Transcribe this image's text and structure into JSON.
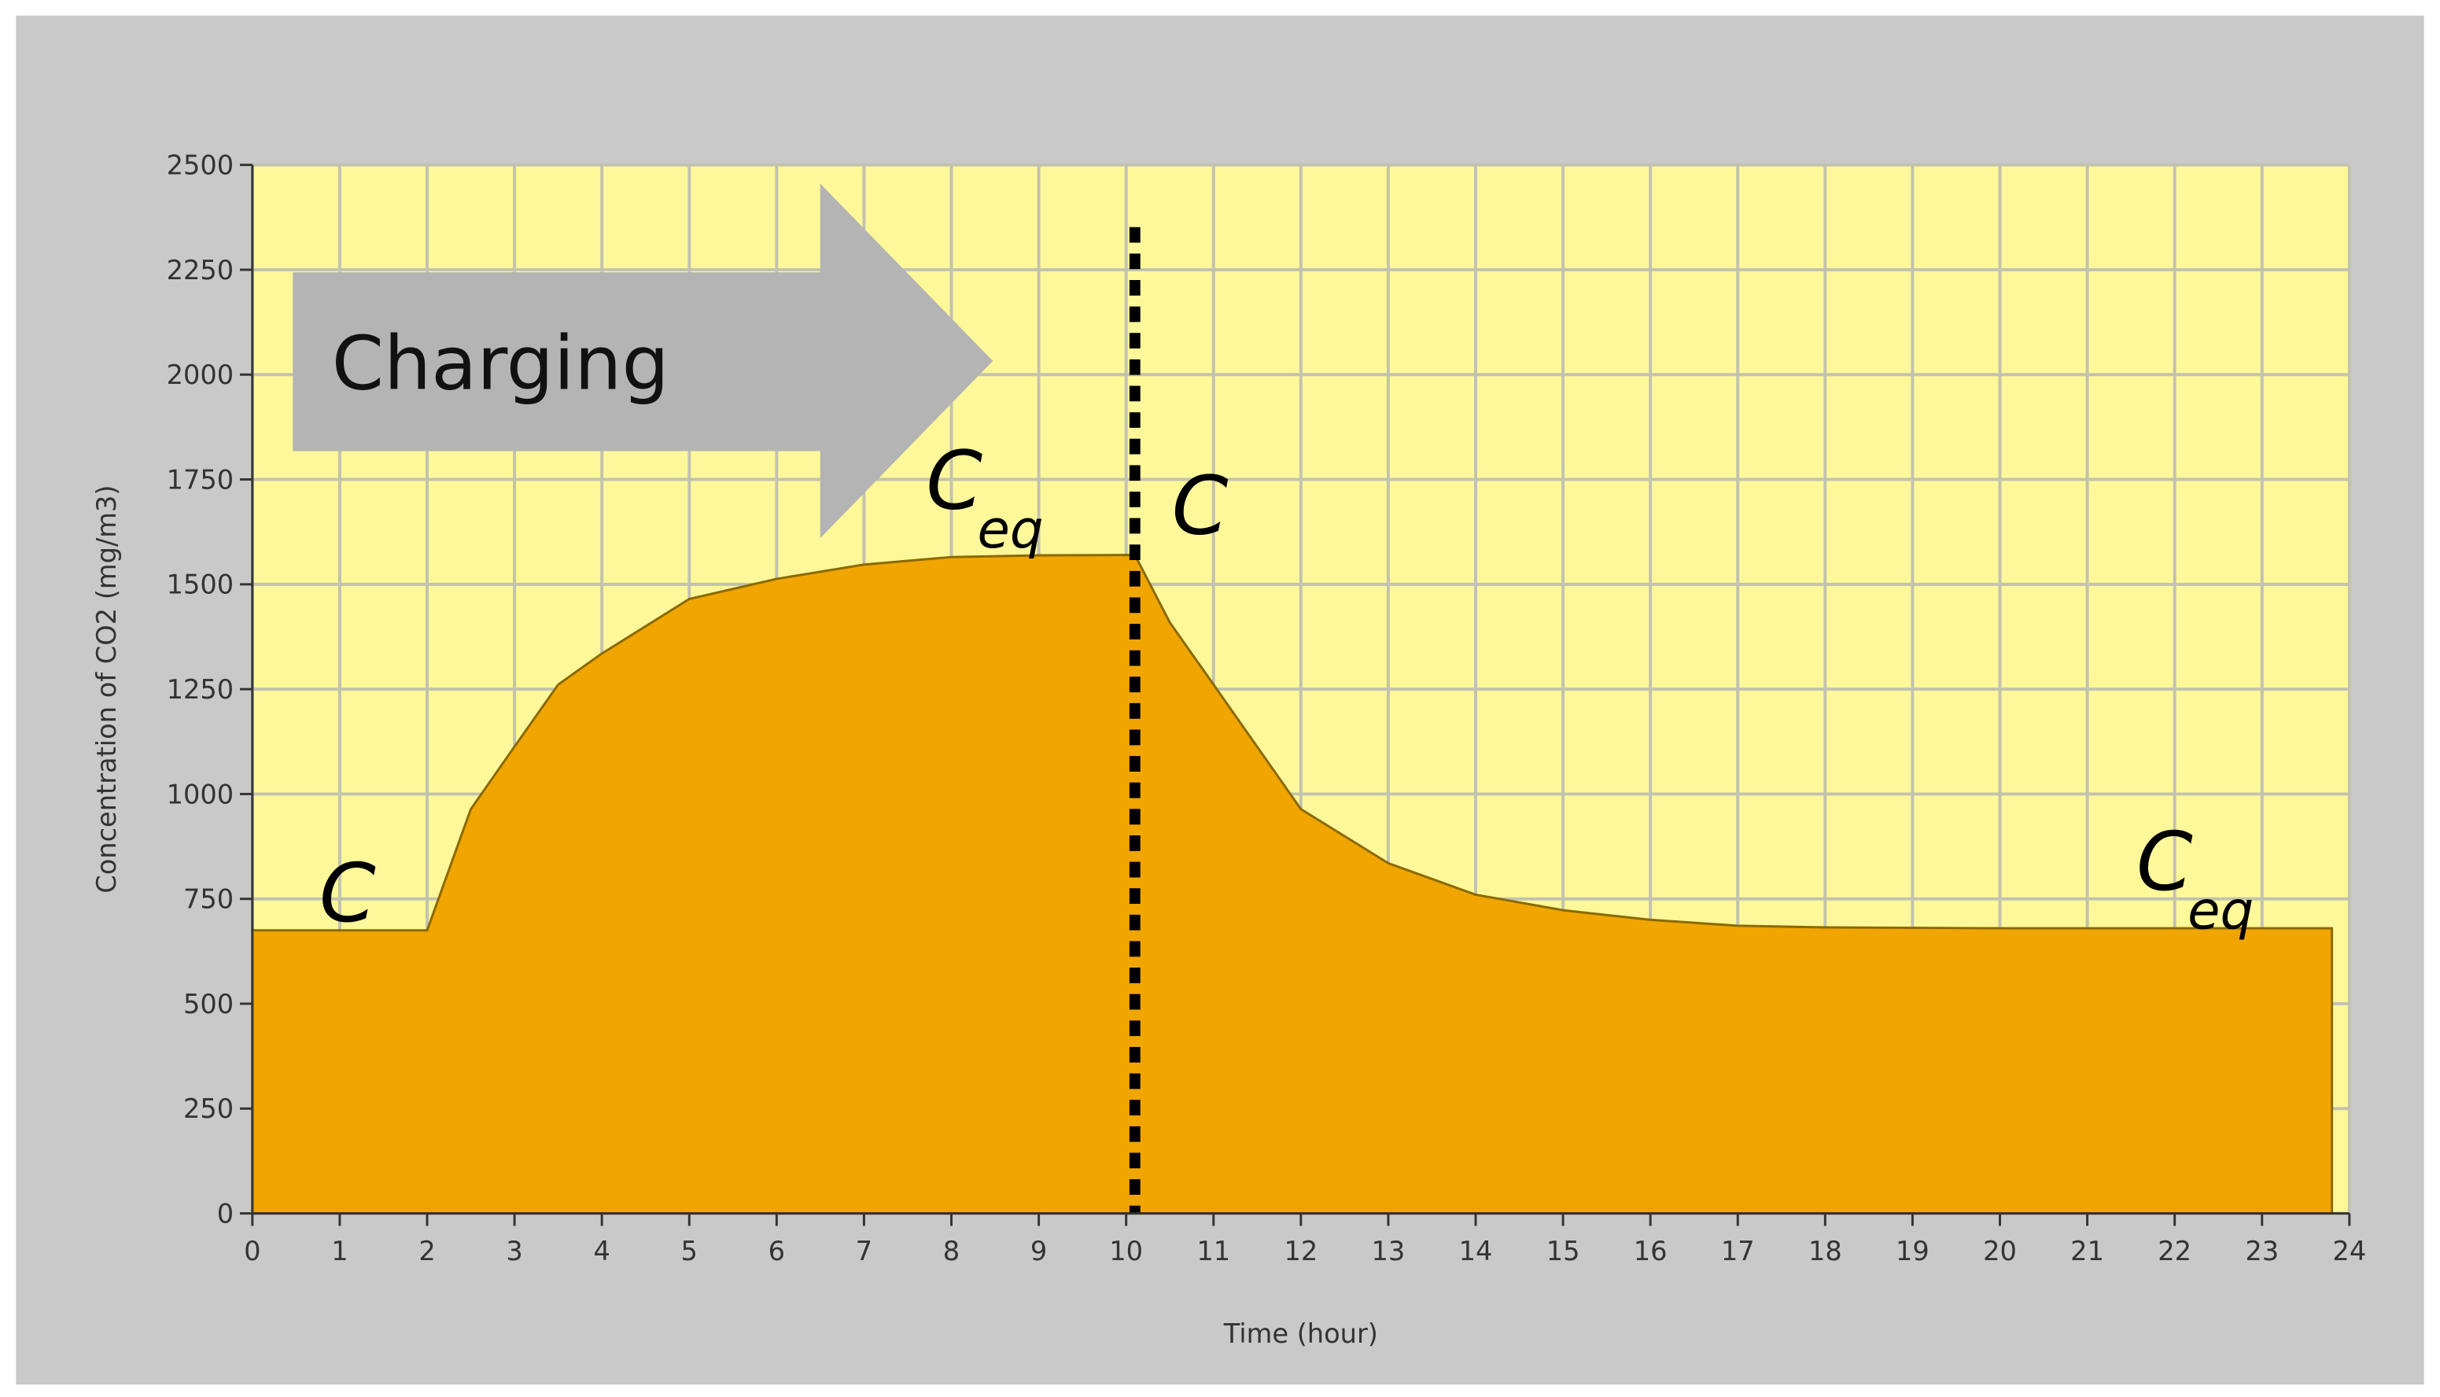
{
  "chart_data": {
    "type": "area",
    "x_label": "Time (hour)",
    "y_label": "Concentration of  CO2 (mg/m3)",
    "x": [
      0,
      1,
      2,
      2.5,
      3,
      3.5,
      4,
      5,
      6,
      7,
      8,
      9,
      10.1,
      10.5,
      11,
      12,
      13,
      14,
      15,
      16,
      17,
      18,
      20,
      22,
      23.8
    ],
    "series": [
      {
        "name": "CO2",
        "color": "#f0a500",
        "values": [
          675,
          675,
          675,
          964,
          1113,
          1261,
          1335,
          1465,
          1513,
          1547,
          1565,
          1569,
          1570,
          1409,
          1261,
          964,
          835,
          760,
          723,
          700,
          686,
          682,
          680,
          680,
          680
        ]
      }
    ],
    "xlim": [
      0,
      24
    ],
    "ylim": [
      0,
      2500
    ],
    "xticks": [
      0,
      1,
      2,
      3,
      4,
      5,
      6,
      7,
      8,
      9,
      10,
      11,
      12,
      13,
      14,
      15,
      16,
      17,
      18,
      19,
      20,
      21,
      22,
      23,
      24
    ],
    "yticks": [
      0,
      250,
      500,
      750,
      1000,
      1250,
      1500,
      1750,
      2000,
      2250,
      2500
    ],
    "grid": true,
    "divider_x": 10.1,
    "phase_label": "Charging",
    "annotations": [
      {
        "text": "C"
      },
      {
        "text": "C",
        "sub": "eq"
      },
      {
        "text": "C"
      },
      {
        "text": "C",
        "sub": "eq"
      }
    ]
  }
}
